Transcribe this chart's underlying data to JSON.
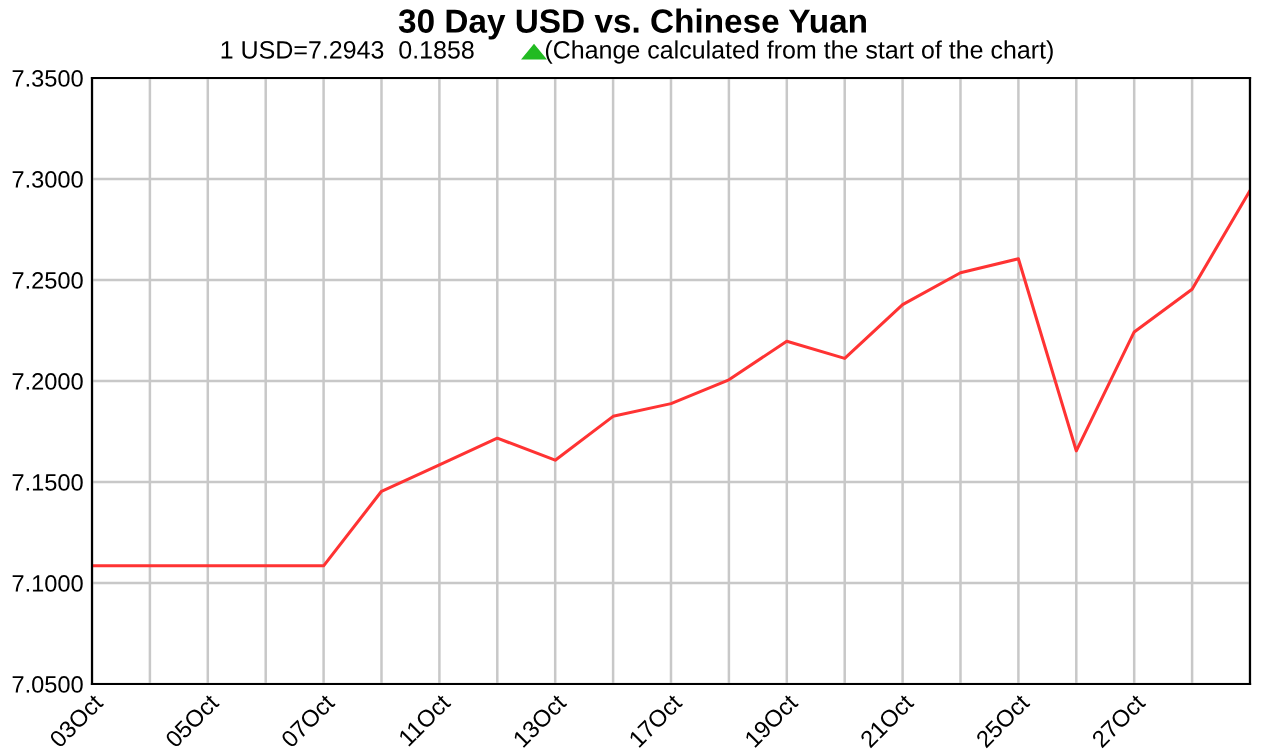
{
  "chart_data": {
    "type": "line",
    "title": "30 Day USD vs. Chinese Yuan",
    "subtitle": "1 USD=7.2943  0.1858",
    "annotations": [
      "(Change calculated from the start of the chart)"
    ],
    "categories": [
      "03Oct",
      null,
      "05Oct",
      null,
      "07Oct",
      null,
      "11Oct",
      null,
      "13Oct",
      null,
      "17Oct",
      null,
      "19Oct",
      null,
      "21Oct",
      null,
      "25Oct",
      null,
      "27Oct",
      null,
      null
    ],
    "series": [
      {
        "color": "#ff3333",
        "values": [
          7.1085,
          7.1085,
          7.1085,
          7.1085,
          7.1085,
          7.1454,
          7.1585,
          7.1717,
          7.1608,
          7.1825,
          7.1888,
          7.2006,
          7.2197,
          7.2112,
          7.2378,
          7.2536,
          7.2605,
          7.1654,
          7.2243,
          7.2454,
          7.2943
        ]
      }
    ],
    "ylim": [
      7.05,
      7.35
    ],
    "yticks": [
      {
        "value": 7.05,
        "label": "7.0500"
      },
      {
        "value": 7.1,
        "label": "7.1000"
      },
      {
        "value": 7.15,
        "label": "7.1500"
      },
      {
        "value": 7.2,
        "label": "7.2000"
      },
      {
        "value": 7.25,
        "label": "7.2500"
      },
      {
        "value": 7.3,
        "label": "7.3000"
      },
      {
        "value": 7.35,
        "label": "7.3500"
      }
    ],
    "grid": true,
    "legend": false,
    "marker": "none",
    "line_style": "solid"
  }
}
